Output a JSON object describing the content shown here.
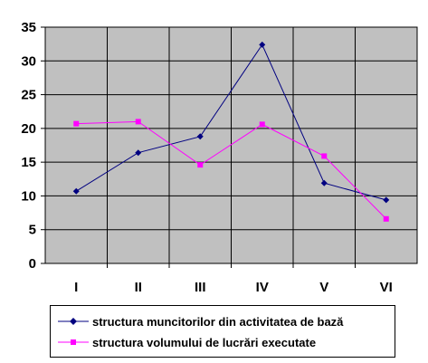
{
  "chart_data": {
    "type": "line",
    "categories": [
      "I",
      "II",
      "III",
      "IV",
      "V",
      "VI"
    ],
    "ylim": [
      0,
      35
    ],
    "yticks": [
      0,
      5,
      10,
      15,
      20,
      25,
      30,
      35
    ],
    "grid": true,
    "plot_background": "#c0c0c0",
    "legend_position": "bottom",
    "series": [
      {
        "name": "structura muncitorilor din activitatea de bază",
        "values": [
          10.7,
          16.4,
          18.8,
          32.4,
          11.9,
          9.4
        ],
        "color": "#000080",
        "marker": "diamond"
      },
      {
        "name": "structura volumului de lucrări executate",
        "values": [
          20.7,
          21.0,
          14.6,
          20.6,
          15.9,
          6.6
        ],
        "color": "#ff00ff",
        "marker": "square"
      }
    ]
  }
}
